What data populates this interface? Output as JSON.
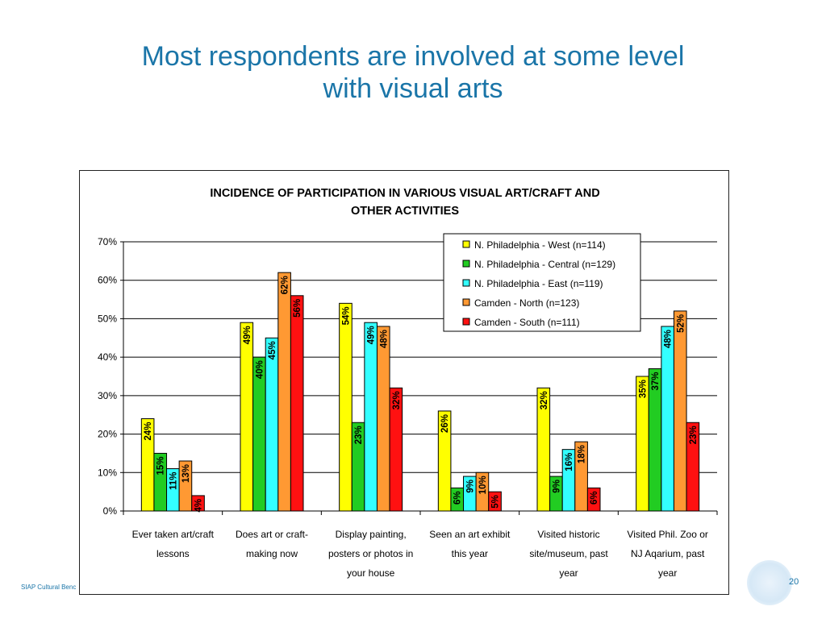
{
  "slide": {
    "title_line1": "Most respondents are involved at some level",
    "title_line2": "with visual arts",
    "footer": "SIAP Cultural Benc",
    "page_number": "20"
  },
  "chart_data": {
    "type": "bar",
    "title_line1": "INCIDENCE OF PARTICIPATION IN VARIOUS VISUAL ART/CRAFT AND",
    "title_line2": "OTHER ACTIVITIES",
    "categories": [
      [
        "Ever taken art/craft",
        "lessons"
      ],
      [
        "Does art or craft-",
        "making now"
      ],
      [
        "Display  painting,",
        "posters or photos in",
        "your house"
      ],
      [
        "Seen an art exhibit",
        "this year"
      ],
      [
        "Visited historic",
        "site/museum, past",
        "year"
      ],
      [
        "Visited Phil. Zoo or",
        "NJ Aqarium, past",
        "year"
      ]
    ],
    "series": [
      {
        "name": "N. Philadelphia - West (n=114)",
        "color": "#ffff00",
        "values": [
          24,
          49,
          54,
          26,
          32,
          35
        ]
      },
      {
        "name": "N. Philadelphia - Central (n=129)",
        "color": "#22cc22",
        "values": [
          15,
          40,
          23,
          6,
          9,
          37
        ]
      },
      {
        "name": "N. Philadelphia - East (n=119)",
        "color": "#33ffff",
        "values": [
          11,
          45,
          49,
          9,
          16,
          48
        ]
      },
      {
        "name": "Camden - North (n=123)",
        "color": "#ff9933",
        "values": [
          13,
          62,
          48,
          10,
          18,
          52
        ]
      },
      {
        "name": "Camden - South (n=111)",
        "color": "#ff1111",
        "values": [
          4,
          56,
          32,
          5,
          6,
          23
        ]
      }
    ],
    "y_ticks": [
      "0%",
      "10%",
      "20%",
      "30%",
      "40%",
      "50%",
      "60%",
      "70%"
    ],
    "ylim": [
      0,
      70
    ],
    "value_suffix": "%",
    "grid": true,
    "legend_position": "top-right"
  }
}
